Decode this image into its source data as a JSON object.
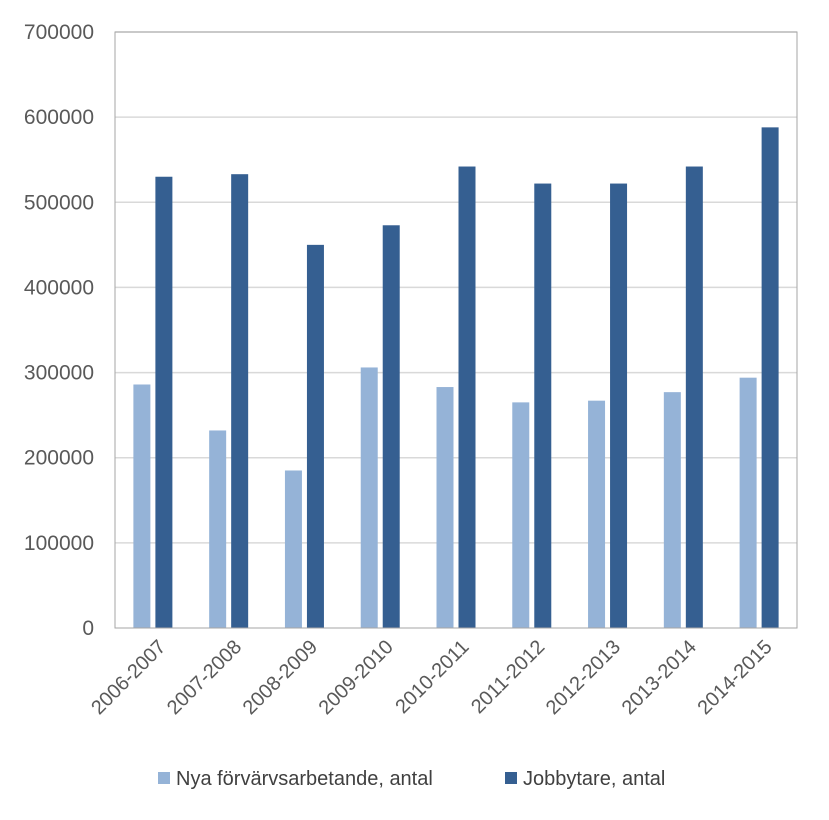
{
  "chart_data": {
    "type": "bar",
    "title": "",
    "xlabel": "",
    "ylabel": "",
    "categories": [
      "2006-2007",
      "2007-2008",
      "2008-2009",
      "2009-2010",
      "2010-2011",
      "2011-2012",
      "2012-2013",
      "2013-2014",
      "2014-2015"
    ],
    "series": [
      {
        "name": "Nya förvärvsarbetande, antal",
        "color": "#95b3d7",
        "values": [
          286000,
          232000,
          185000,
          306000,
          283000,
          265000,
          267000,
          277000,
          294000
        ]
      },
      {
        "name": "Jobbytare, antal",
        "color": "#355f91",
        "values": [
          530000,
          533000,
          450000,
          473000,
          542000,
          522000,
          522000,
          542000,
          588000
        ]
      }
    ],
    "ylim": [
      0,
      700000
    ],
    "yticks": [
      "0",
      "100000",
      "200000",
      "300000",
      "400000",
      "500000",
      "600000",
      "700000"
    ],
    "grid": true,
    "legend_position": "bottom"
  }
}
